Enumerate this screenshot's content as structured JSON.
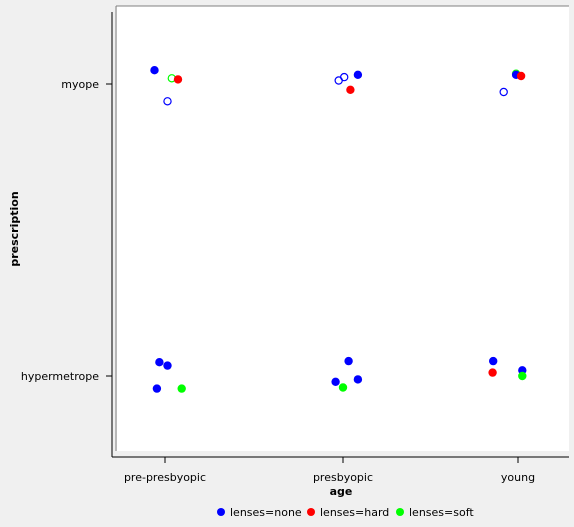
{
  "chart_data": {
    "type": "scatter",
    "title": "",
    "xlabel": "age",
    "ylabel": "prescription",
    "x_categories": [
      "pre-presbyopic",
      "presbyopic",
      "young"
    ],
    "y_categories": [
      "hypermetrope",
      "myope"
    ],
    "legend_position": "bottom",
    "grid": false,
    "series": [
      {
        "name": "lenses=none",
        "color": "#0000ff"
      },
      {
        "name": "lenses=hard",
        "color": "#ff0000"
      },
      {
        "name": "lenses=soft",
        "color": "#00ff00"
      }
    ],
    "points": [
      {
        "x": "pre-presbyopic",
        "y": "myope",
        "series": "lenses=none",
        "filled": true,
        "jx": -0.17,
        "jy": 0.12
      },
      {
        "x": "pre-presbyopic",
        "y": "myope",
        "series": "lenses=soft",
        "filled": false,
        "jx": 0.11,
        "jy": 0.05
      },
      {
        "x": "pre-presbyopic",
        "y": "myope",
        "series": "lenses=hard",
        "filled": true,
        "jx": 0.21,
        "jy": 0.04
      },
      {
        "x": "pre-presbyopic",
        "y": "myope",
        "series": "lenses=none",
        "filled": false,
        "jx": 0.04,
        "jy": -0.15
      },
      {
        "x": "pre-presbyopic",
        "y": "hypermetrope",
        "series": "lenses=none",
        "filled": true,
        "jx": -0.09,
        "jy": 0.12
      },
      {
        "x": "pre-presbyopic",
        "y": "hypermetrope",
        "series": "lenses=none",
        "filled": true,
        "jx": 0.04,
        "jy": 0.09
      },
      {
        "x": "pre-presbyopic",
        "y": "hypermetrope",
        "series": "lenses=none",
        "filled": true,
        "jx": -0.13,
        "jy": -0.11
      },
      {
        "x": "pre-presbyopic",
        "y": "hypermetrope",
        "series": "lenses=soft",
        "filled": true,
        "jx": 0.27,
        "jy": -0.11
      },
      {
        "x": "presbyopic",
        "y": "myope",
        "series": "lenses=none",
        "filled": false,
        "jx": -0.07,
        "jy": 0.03
      },
      {
        "x": "presbyopic",
        "y": "myope",
        "series": "lenses=none",
        "filled": false,
        "jx": 0.02,
        "jy": 0.06
      },
      {
        "x": "presbyopic",
        "y": "myope",
        "series": "lenses=none",
        "filled": true,
        "jx": 0.24,
        "jy": 0.08
      },
      {
        "x": "presbyopic",
        "y": "myope",
        "series": "lenses=hard",
        "filled": true,
        "jx": 0.12,
        "jy": -0.05
      },
      {
        "x": "presbyopic",
        "y": "hypermetrope",
        "series": "lenses=none",
        "filled": true,
        "jx": 0.09,
        "jy": 0.13
      },
      {
        "x": "presbyopic",
        "y": "hypermetrope",
        "series": "lenses=none",
        "filled": true,
        "jx": -0.12,
        "jy": -0.05
      },
      {
        "x": "presbyopic",
        "y": "hypermetrope",
        "series": "lenses=none",
        "filled": true,
        "jx": 0.24,
        "jy": -0.03
      },
      {
        "x": "presbyopic",
        "y": "hypermetrope",
        "series": "lenses=soft",
        "filled": true,
        "jx": 0.0,
        "jy": -0.1
      },
      {
        "x": "young",
        "y": "myope",
        "series": "lenses=soft",
        "filled": false,
        "jx": -0.03,
        "jy": 0.09
      },
      {
        "x": "young",
        "y": "myope",
        "series": "lenses=none",
        "filled": true,
        "jx": -0.03,
        "jy": 0.08
      },
      {
        "x": "young",
        "y": "myope",
        "series": "lenses=hard",
        "filled": true,
        "jx": 0.05,
        "jy": 0.07
      },
      {
        "x": "young",
        "y": "myope",
        "series": "lenses=none",
        "filled": false,
        "jx": -0.23,
        "jy": -0.07
      },
      {
        "x": "young",
        "y": "hypermetrope",
        "series": "lenses=none",
        "filled": true,
        "jx": -0.4,
        "jy": 0.13
      },
      {
        "x": "young",
        "y": "hypermetrope",
        "series": "lenses=hard",
        "filled": true,
        "jx": -0.41,
        "jy": 0.03
      },
      {
        "x": "young",
        "y": "hypermetrope",
        "series": "lenses=none",
        "filled": true,
        "jx": 0.07,
        "jy": 0.05
      },
      {
        "x": "young",
        "y": "hypermetrope",
        "series": "lenses=soft",
        "filled": true,
        "jx": 0.07,
        "jy": 0.0
      }
    ]
  }
}
